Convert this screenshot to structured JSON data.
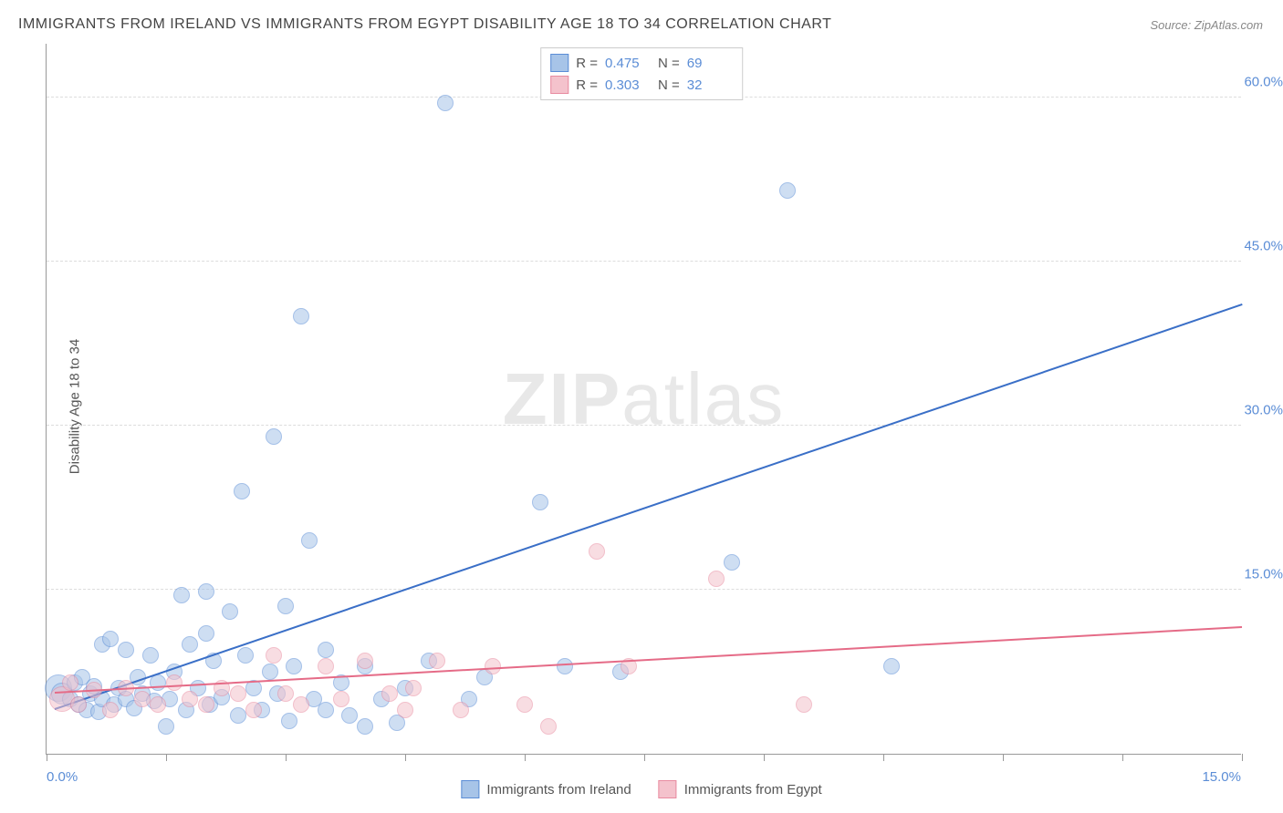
{
  "title": "IMMIGRANTS FROM IRELAND VS IMMIGRANTS FROM EGYPT DISABILITY AGE 18 TO 34 CORRELATION CHART",
  "source": "Source: ZipAtlas.com",
  "ylabel": "Disability Age 18 to 34",
  "watermark_bold": "ZIP",
  "watermark_rest": "atlas",
  "chart": {
    "type": "scatter",
    "x_domain": [
      0,
      15
    ],
    "y_domain": [
      0,
      65
    ],
    "y_gridlines": [
      15,
      30,
      45,
      60
    ],
    "y_tick_labels": [
      "15.0%",
      "30.0%",
      "45.0%",
      "60.0%"
    ],
    "x_ticks": [
      0,
      1.5,
      3,
      4.5,
      6,
      7.5,
      9,
      10.5,
      12,
      13.5,
      15
    ],
    "x_axis_labels": [
      {
        "value": "0.0%",
        "pos": 0,
        "align": "left"
      },
      {
        "value": "15.0%",
        "pos": 15,
        "align": "right"
      }
    ],
    "background_color": "#ffffff",
    "grid_color": "#dddddd",
    "axis_color": "#999999",
    "marker_radius": 9,
    "marker_opacity": 0.55,
    "marker_border_width": 1
  },
  "series": [
    {
      "name": "Immigrants from Ireland",
      "fill_color": "#a7c4e8",
      "border_color": "#5b8dd6",
      "line_color": "#3a6fc7",
      "r_label": "R =",
      "r_value": "0.475",
      "n_label": "N =",
      "n_value": "69",
      "trend": {
        "x1": 0.1,
        "y1": 4.0,
        "x2": 15.0,
        "y2": 41.0
      },
      "points": [
        {
          "x": 0.15,
          "y": 6.0,
          "r": 15
        },
        {
          "x": 0.2,
          "y": 5.5,
          "r": 12
        },
        {
          "x": 0.3,
          "y": 5.0
        },
        {
          "x": 0.35,
          "y": 6.5
        },
        {
          "x": 0.4,
          "y": 4.5
        },
        {
          "x": 0.45,
          "y": 7.0
        },
        {
          "x": 0.5,
          "y": 4.0
        },
        {
          "x": 0.55,
          "y": 5.5
        },
        {
          "x": 0.6,
          "y": 6.2
        },
        {
          "x": 0.65,
          "y": 3.8
        },
        {
          "x": 0.7,
          "y": 10.0
        },
        {
          "x": 0.7,
          "y": 5.0
        },
        {
          "x": 0.8,
          "y": 10.5
        },
        {
          "x": 0.85,
          "y": 4.5
        },
        {
          "x": 0.9,
          "y": 6.0
        },
        {
          "x": 1.0,
          "y": 9.5
        },
        {
          "x": 1.0,
          "y": 5.0
        },
        {
          "x": 1.1,
          "y": 4.2
        },
        {
          "x": 1.15,
          "y": 7.0
        },
        {
          "x": 1.2,
          "y": 5.5
        },
        {
          "x": 1.3,
          "y": 9.0
        },
        {
          "x": 1.35,
          "y": 4.8
        },
        {
          "x": 1.4,
          "y": 6.5
        },
        {
          "x": 1.5,
          "y": 2.5
        },
        {
          "x": 1.55,
          "y": 5.0
        },
        {
          "x": 1.6,
          "y": 7.5
        },
        {
          "x": 1.7,
          "y": 14.5
        },
        {
          "x": 1.75,
          "y": 4.0
        },
        {
          "x": 1.8,
          "y": 10.0
        },
        {
          "x": 1.9,
          "y": 6.0
        },
        {
          "x": 2.0,
          "y": 14.8
        },
        {
          "x": 2.05,
          "y": 4.5
        },
        {
          "x": 2.1,
          "y": 8.5
        },
        {
          "x": 2.2,
          "y": 5.2
        },
        {
          "x": 2.3,
          "y": 13.0
        },
        {
          "x": 2.4,
          "y": 3.5
        },
        {
          "x": 2.45,
          "y": 24.0
        },
        {
          "x": 2.5,
          "y": 9.0
        },
        {
          "x": 2.6,
          "y": 6.0
        },
        {
          "x": 2.7,
          "y": 4.0
        },
        {
          "x": 2.8,
          "y": 7.5
        },
        {
          "x": 2.85,
          "y": 29.0
        },
        {
          "x": 2.9,
          "y": 5.5
        },
        {
          "x": 3.0,
          "y": 13.5
        },
        {
          "x": 3.05,
          "y": 3.0
        },
        {
          "x": 3.1,
          "y": 8.0
        },
        {
          "x": 3.2,
          "y": 40.0
        },
        {
          "x": 3.3,
          "y": 19.5
        },
        {
          "x": 3.35,
          "y": 5.0
        },
        {
          "x": 3.5,
          "y": 9.5
        },
        {
          "x": 3.5,
          "y": 4.0
        },
        {
          "x": 3.7,
          "y": 6.5
        },
        {
          "x": 3.8,
          "y": 3.5
        },
        {
          "x": 4.0,
          "y": 8.0
        },
        {
          "x": 4.0,
          "y": 2.5
        },
        {
          "x": 4.2,
          "y": 5.0
        },
        {
          "x": 4.4,
          "y": 2.8
        },
        {
          "x": 4.5,
          "y": 6.0
        },
        {
          "x": 4.8,
          "y": 8.5
        },
        {
          "x": 5.0,
          "y": 59.5
        },
        {
          "x": 5.3,
          "y": 5.0
        },
        {
          "x": 5.5,
          "y": 7.0
        },
        {
          "x": 6.2,
          "y": 23.0
        },
        {
          "x": 6.5,
          "y": 8.0
        },
        {
          "x": 7.2,
          "y": 7.5
        },
        {
          "x": 8.6,
          "y": 17.5
        },
        {
          "x": 9.3,
          "y": 51.5
        },
        {
          "x": 10.6,
          "y": 8.0
        },
        {
          "x": 2.0,
          "y": 11.0
        }
      ]
    },
    {
      "name": "Immigrants from Egypt",
      "fill_color": "#f4c2cc",
      "border_color": "#e88ba0",
      "line_color": "#e56b87",
      "r_label": "R =",
      "r_value": "0.303",
      "n_label": "N =",
      "n_value": "32",
      "trend": {
        "x1": 0.1,
        "y1": 5.5,
        "x2": 15.0,
        "y2": 11.5
      },
      "points": [
        {
          "x": 0.2,
          "y": 5.0,
          "r": 14
        },
        {
          "x": 0.3,
          "y": 6.5
        },
        {
          "x": 0.4,
          "y": 4.5
        },
        {
          "x": 0.6,
          "y": 5.8
        },
        {
          "x": 0.8,
          "y": 4.0
        },
        {
          "x": 1.0,
          "y": 6.0
        },
        {
          "x": 1.2,
          "y": 5.0
        },
        {
          "x": 1.4,
          "y": 4.5
        },
        {
          "x": 1.6,
          "y": 6.5
        },
        {
          "x": 1.8,
          "y": 5.0
        },
        {
          "x": 2.0,
          "y": 4.5
        },
        {
          "x": 2.2,
          "y": 6.0
        },
        {
          "x": 2.4,
          "y": 5.5
        },
        {
          "x": 2.6,
          "y": 4.0
        },
        {
          "x": 2.85,
          "y": 9.0
        },
        {
          "x": 3.0,
          "y": 5.5
        },
        {
          "x": 3.2,
          "y": 4.5
        },
        {
          "x": 3.5,
          "y": 8.0
        },
        {
          "x": 3.7,
          "y": 5.0
        },
        {
          "x": 4.0,
          "y": 8.5
        },
        {
          "x": 4.3,
          "y": 5.5
        },
        {
          "x": 4.5,
          "y": 4.0
        },
        {
          "x": 4.9,
          "y": 8.5
        },
        {
          "x": 5.2,
          "y": 4.0
        },
        {
          "x": 5.6,
          "y": 8.0
        },
        {
          "x": 6.0,
          "y": 4.5
        },
        {
          "x": 6.3,
          "y": 2.5
        },
        {
          "x": 6.9,
          "y": 18.5
        },
        {
          "x": 7.3,
          "y": 8.0
        },
        {
          "x": 8.4,
          "y": 16.0
        },
        {
          "x": 9.5,
          "y": 4.5
        },
        {
          "x": 4.6,
          "y": 6.0
        }
      ]
    }
  ],
  "legend_bottom": [
    {
      "label": "Immigrants from Ireland",
      "fill": "#a7c4e8",
      "border": "#5b8dd6"
    },
    {
      "label": "Immigrants from Egypt",
      "fill": "#f4c2cc",
      "border": "#e88ba0"
    }
  ]
}
